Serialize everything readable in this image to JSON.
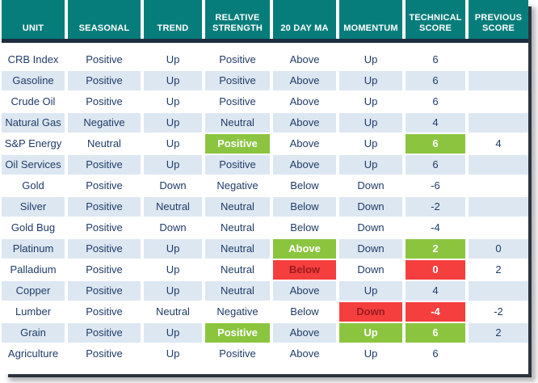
{
  "colors": {
    "header_teal": "#077d7b",
    "header_divider_navy": "#1d2e40",
    "row_stripe_blue": "#dde7f2",
    "body_text_navy": "#1f3c68",
    "highlight_green": "#8bc53f",
    "highlight_red": "#f53e3e",
    "dark_red_text": "#9c1b1e"
  },
  "chart_data": {
    "type": "table",
    "columns": [
      "UNIT",
      "SEASONAL",
      "TREND",
      "RELATIVE STRENGTH",
      "20 DAY MA",
      "MOMENTUM",
      "TECHNICAL SCORE",
      "PREVIOUS SCORE"
    ],
    "legend_note": "highlight values: green = positive change flag (white bold on green), red = negative change flag (white bold on red), red-dark = negative flag with dark red text",
    "rows": [
      {
        "unit": "CRB Index",
        "cells": [
          {
            "t": "Positive"
          },
          {
            "t": "Up"
          },
          {
            "t": "Positive"
          },
          {
            "t": "Above"
          },
          {
            "t": "Up"
          },
          {
            "t": "6"
          },
          {
            "t": ""
          }
        ]
      },
      {
        "unit": "Gasoline",
        "cells": [
          {
            "t": "Positive"
          },
          {
            "t": "Up"
          },
          {
            "t": "Positive"
          },
          {
            "t": "Above"
          },
          {
            "t": "Up"
          },
          {
            "t": "6"
          },
          {
            "t": ""
          }
        ]
      },
      {
        "unit": "Crude Oil",
        "cells": [
          {
            "t": "Positive"
          },
          {
            "t": "Up"
          },
          {
            "t": "Positive"
          },
          {
            "t": "Above"
          },
          {
            "t": "Up"
          },
          {
            "t": "6"
          },
          {
            "t": ""
          }
        ]
      },
      {
        "unit": "Natural Gas",
        "cells": [
          {
            "t": "Negative"
          },
          {
            "t": "Up"
          },
          {
            "t": "Neutral"
          },
          {
            "t": "Above"
          },
          {
            "t": "Up"
          },
          {
            "t": "4"
          },
          {
            "t": ""
          }
        ]
      },
      {
        "unit": "S&P Energy",
        "cells": [
          {
            "t": "Neutral"
          },
          {
            "t": "Up"
          },
          {
            "t": "Positive",
            "h": "green"
          },
          {
            "t": "Above"
          },
          {
            "t": "Up"
          },
          {
            "t": "6",
            "h": "green"
          },
          {
            "t": "4"
          }
        ]
      },
      {
        "unit": "Oil Services",
        "cells": [
          {
            "t": "Positive"
          },
          {
            "t": "Up"
          },
          {
            "t": "Positive"
          },
          {
            "t": "Above"
          },
          {
            "t": "Up"
          },
          {
            "t": "6"
          },
          {
            "t": ""
          }
        ]
      },
      {
        "unit": "Gold",
        "cells": [
          {
            "t": "Positive"
          },
          {
            "t": "Down"
          },
          {
            "t": "Negative"
          },
          {
            "t": "Below"
          },
          {
            "t": "Down"
          },
          {
            "t": "-6"
          },
          {
            "t": ""
          }
        ]
      },
      {
        "unit": "Silver",
        "cells": [
          {
            "t": "Positive"
          },
          {
            "t": "Neutral"
          },
          {
            "t": "Neutral"
          },
          {
            "t": "Below"
          },
          {
            "t": "Down"
          },
          {
            "t": "-2"
          },
          {
            "t": ""
          }
        ]
      },
      {
        "unit": "Gold Bug",
        "cells": [
          {
            "t": "Positive"
          },
          {
            "t": "Down"
          },
          {
            "t": "Neutral"
          },
          {
            "t": "Below"
          },
          {
            "t": "Down"
          },
          {
            "t": "-4"
          },
          {
            "t": ""
          }
        ]
      },
      {
        "unit": "Platinum",
        "cells": [
          {
            "t": "Positive"
          },
          {
            "t": "Up"
          },
          {
            "t": "Neutral"
          },
          {
            "t": "Above",
            "h": "green"
          },
          {
            "t": "Down"
          },
          {
            "t": "2",
            "h": "green"
          },
          {
            "t": "0"
          }
        ]
      },
      {
        "unit": "Palladium",
        "cells": [
          {
            "t": "Positive"
          },
          {
            "t": "Up"
          },
          {
            "t": "Neutral"
          },
          {
            "t": "Below",
            "h": "red-dark"
          },
          {
            "t": "Down"
          },
          {
            "t": "0",
            "h": "red"
          },
          {
            "t": "2"
          }
        ]
      },
      {
        "unit": "Copper",
        "cells": [
          {
            "t": "Positive"
          },
          {
            "t": "Up"
          },
          {
            "t": "Neutral"
          },
          {
            "t": "Above"
          },
          {
            "t": "Up"
          },
          {
            "t": "4"
          },
          {
            "t": ""
          }
        ]
      },
      {
        "unit": "Lumber",
        "cells": [
          {
            "t": "Positive"
          },
          {
            "t": "Neutral"
          },
          {
            "t": "Negative"
          },
          {
            "t": "Below"
          },
          {
            "t": "Down",
            "h": "red-dark"
          },
          {
            "t": "-4",
            "h": "red"
          },
          {
            "t": "-2"
          }
        ]
      },
      {
        "unit": "Grain",
        "cells": [
          {
            "t": "Positive"
          },
          {
            "t": "Up"
          },
          {
            "t": "Positive",
            "h": "green"
          },
          {
            "t": "Above"
          },
          {
            "t": "Up",
            "h": "green"
          },
          {
            "t": "6",
            "h": "green"
          },
          {
            "t": "2"
          }
        ]
      },
      {
        "unit": "Agriculture",
        "cells": [
          {
            "t": "Positive"
          },
          {
            "t": "Up"
          },
          {
            "t": "Positive"
          },
          {
            "t": "Above"
          },
          {
            "t": "Up"
          },
          {
            "t": "6"
          },
          {
            "t": ""
          }
        ]
      }
    ]
  }
}
